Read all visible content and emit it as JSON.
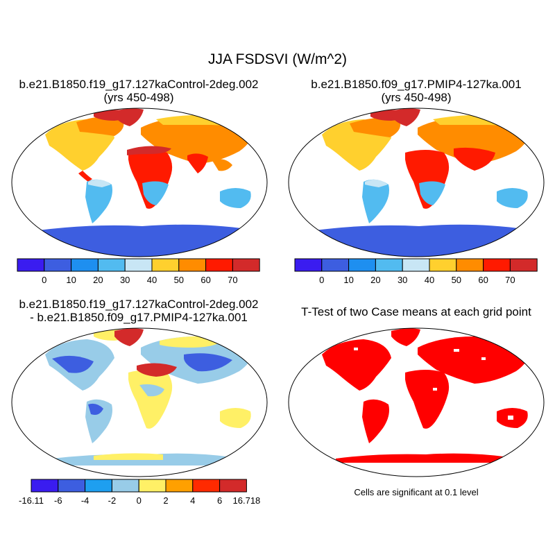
{
  "main_title": "JJA FSDSVI (W/m^2)",
  "panels": [
    {
      "title_line1": "b.e21.B1850.f19_g17.127kaControl-2deg.002",
      "title_line2": "(yrs 450-498)"
    },
    {
      "title_line1": "b.e21.B1850.f09_g17.PMIP4-127ka.001",
      "title_line2": "(yrs 450-498)"
    },
    {
      "title_line1": "b.e21.B1850.f19_g17.127kaControl-2deg.002",
      "title_line2": "- b.e21.B1850.f09_g17.PMIP4-127ka.001"
    },
    {
      "title_line1": "T-Test of two Case means at each grid point",
      "title_line2": ""
    }
  ],
  "colorbars": {
    "absolute": {
      "colors": [
        "#3a1cf0",
        "#3d5ee0",
        "#1e8ff0",
        "#52bbf0",
        "#c8e6f5",
        "#ffd02e",
        "#ff8c00",
        "#ff1a00",
        "#d32a2a"
      ],
      "labels": [
        "0",
        "10",
        "20",
        "30",
        "40",
        "50",
        "60",
        "70"
      ]
    },
    "difference": {
      "colors": [
        "#3a1cf0",
        "#3d5ee0",
        "#1e9ff0",
        "#98cce8",
        "#fff066",
        "#ffa000",
        "#ff2a00",
        "#d32a2a"
      ],
      "labels": [
        "-16.11",
        "-6",
        "-4",
        "-2",
        "0",
        "2",
        "4",
        "6",
        "16.718"
      ]
    }
  },
  "significance_note": "Cells are significant at 0.1 level",
  "colors": {
    "ocean": "#ffffff",
    "significant": "#ff0000",
    "coastline": "#000000"
  }
}
